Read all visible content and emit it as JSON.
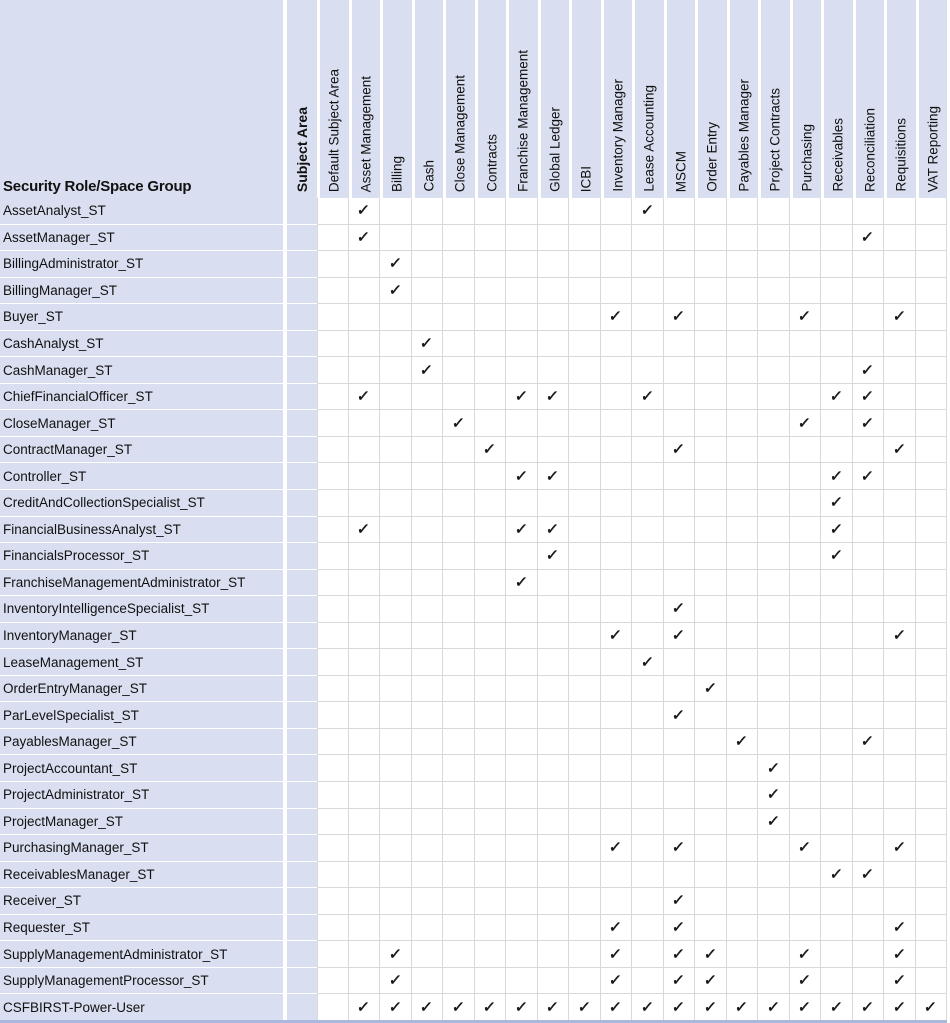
{
  "table": {
    "corner_header": "Security Role/Space Group",
    "group_header": "Subject Area",
    "check_glyph": "✓",
    "columns": [
      "Default Subject Area",
      "Asset Management",
      "Billing",
      "Cash",
      "Close Management",
      "Contracts",
      "Franchise Management",
      "Global Ledger",
      "ICBI",
      "Inventory Manager",
      "Lease Accounting",
      "MSCM",
      "Order Entry",
      "Payables Manager",
      "Project Contracts",
      "Purchasing",
      "Receivables",
      "Reconciliation",
      "Requisitions",
      "VAT Reporting"
    ],
    "rows": [
      {
        "name": "AssetAnalyst_ST",
        "checks": [
          "Asset Management",
          "Lease Accounting"
        ]
      },
      {
        "name": "AssetManager_ST",
        "checks": [
          "Asset Management",
          "Reconciliation"
        ]
      },
      {
        "name": "BillingAdministrator_ST",
        "checks": [
          "Billing"
        ]
      },
      {
        "name": "BillingManager_ST",
        "checks": [
          "Billing"
        ]
      },
      {
        "name": "Buyer_ST",
        "checks": [
          "Inventory Manager",
          "MSCM",
          "Purchasing",
          "Requisitions"
        ]
      },
      {
        "name": "CashAnalyst_ST",
        "checks": [
          "Cash"
        ]
      },
      {
        "name": "CashManager_ST",
        "checks": [
          "Cash",
          "Reconciliation"
        ]
      },
      {
        "name": "ChiefFinancialOfficer_ST",
        "checks": [
          "Asset Management",
          "Franchise Management",
          "Global Ledger",
          "Lease Accounting",
          "Receivables",
          "Reconciliation"
        ]
      },
      {
        "name": "CloseManager_ST",
        "checks": [
          "Close Management",
          "Purchasing",
          "Reconciliation"
        ]
      },
      {
        "name": "ContractManager_ST",
        "checks": [
          "Contracts",
          "MSCM",
          "Requisitions"
        ]
      },
      {
        "name": "Controller_ST",
        "checks": [
          "Franchise Management",
          "Global Ledger",
          "Receivables",
          "Reconciliation"
        ]
      },
      {
        "name": "CreditAndCollectionSpecialist_ST",
        "checks": [
          "Receivables"
        ]
      },
      {
        "name": "FinancialBusinessAnalyst_ST",
        "checks": [
          "Asset Management",
          "Franchise Management",
          "Global Ledger",
          "Receivables"
        ]
      },
      {
        "name": "FinancialsProcessor_ST",
        "checks": [
          "Global Ledger",
          "Receivables"
        ]
      },
      {
        "name": "FranchiseManagementAdministrator_ST",
        "checks": [
          "Franchise Management"
        ]
      },
      {
        "name": "InventoryIntelligenceSpecialist_ST",
        "checks": [
          "MSCM"
        ]
      },
      {
        "name": "InventoryManager_ST",
        "checks": [
          "Inventory Manager",
          "MSCM",
          "Requisitions"
        ]
      },
      {
        "name": "LeaseManagement_ST",
        "checks": [
          "Lease Accounting"
        ]
      },
      {
        "name": "OrderEntryManager_ST",
        "checks": [
          "Order Entry"
        ]
      },
      {
        "name": "ParLevelSpecialist_ST",
        "checks": [
          "MSCM"
        ]
      },
      {
        "name": "PayablesManager_ST",
        "checks": [
          "Payables Manager",
          "Reconciliation"
        ]
      },
      {
        "name": "ProjectAccountant_ST",
        "checks": [
          "Project Contracts"
        ]
      },
      {
        "name": "ProjectAdministrator_ST",
        "checks": [
          "Project Contracts"
        ]
      },
      {
        "name": "ProjectManager_ST",
        "checks": [
          "Project Contracts"
        ]
      },
      {
        "name": "PurchasingManager_ST",
        "checks": [
          "Inventory Manager",
          "MSCM",
          "Purchasing",
          "Requisitions"
        ]
      },
      {
        "name": "ReceivablesManager_ST",
        "checks": [
          "Receivables",
          "Reconciliation"
        ]
      },
      {
        "name": "Receiver_ST",
        "checks": [
          "MSCM"
        ]
      },
      {
        "name": "Requester_ST",
        "checks": [
          "Inventory Manager",
          "MSCM",
          "Requisitions"
        ]
      },
      {
        "name": "SupplyManagementAdministrator_ST",
        "checks": [
          "Billing",
          "Inventory Manager",
          "MSCM",
          "Order Entry",
          "Purchasing",
          "Requisitions"
        ]
      },
      {
        "name": "SupplyManagementProcessor_ST",
        "checks": [
          "Billing",
          "Inventory Manager",
          "MSCM",
          "Order Entry",
          "Purchasing",
          "Requisitions"
        ]
      },
      {
        "name": "CSFBIRST-Power-User",
        "checks": [
          "Asset Management",
          "Billing",
          "Cash",
          "Close Management",
          "Contracts",
          "Franchise Management",
          "Global Ledger",
          "ICBI",
          "Inventory Manager",
          "Lease Accounting",
          "MSCM",
          "Order Entry",
          "Payables Manager",
          "Project Contracts",
          "Purchasing",
          "Receivables",
          "Reconciliation",
          "Requisitions",
          "VAT Reporting"
        ]
      }
    ]
  },
  "colors": {
    "header_bg": "#D9DFF0",
    "grid_line": "#D9D9D9",
    "bottom_edge": "#A9B8DC",
    "text": "#111111"
  }
}
